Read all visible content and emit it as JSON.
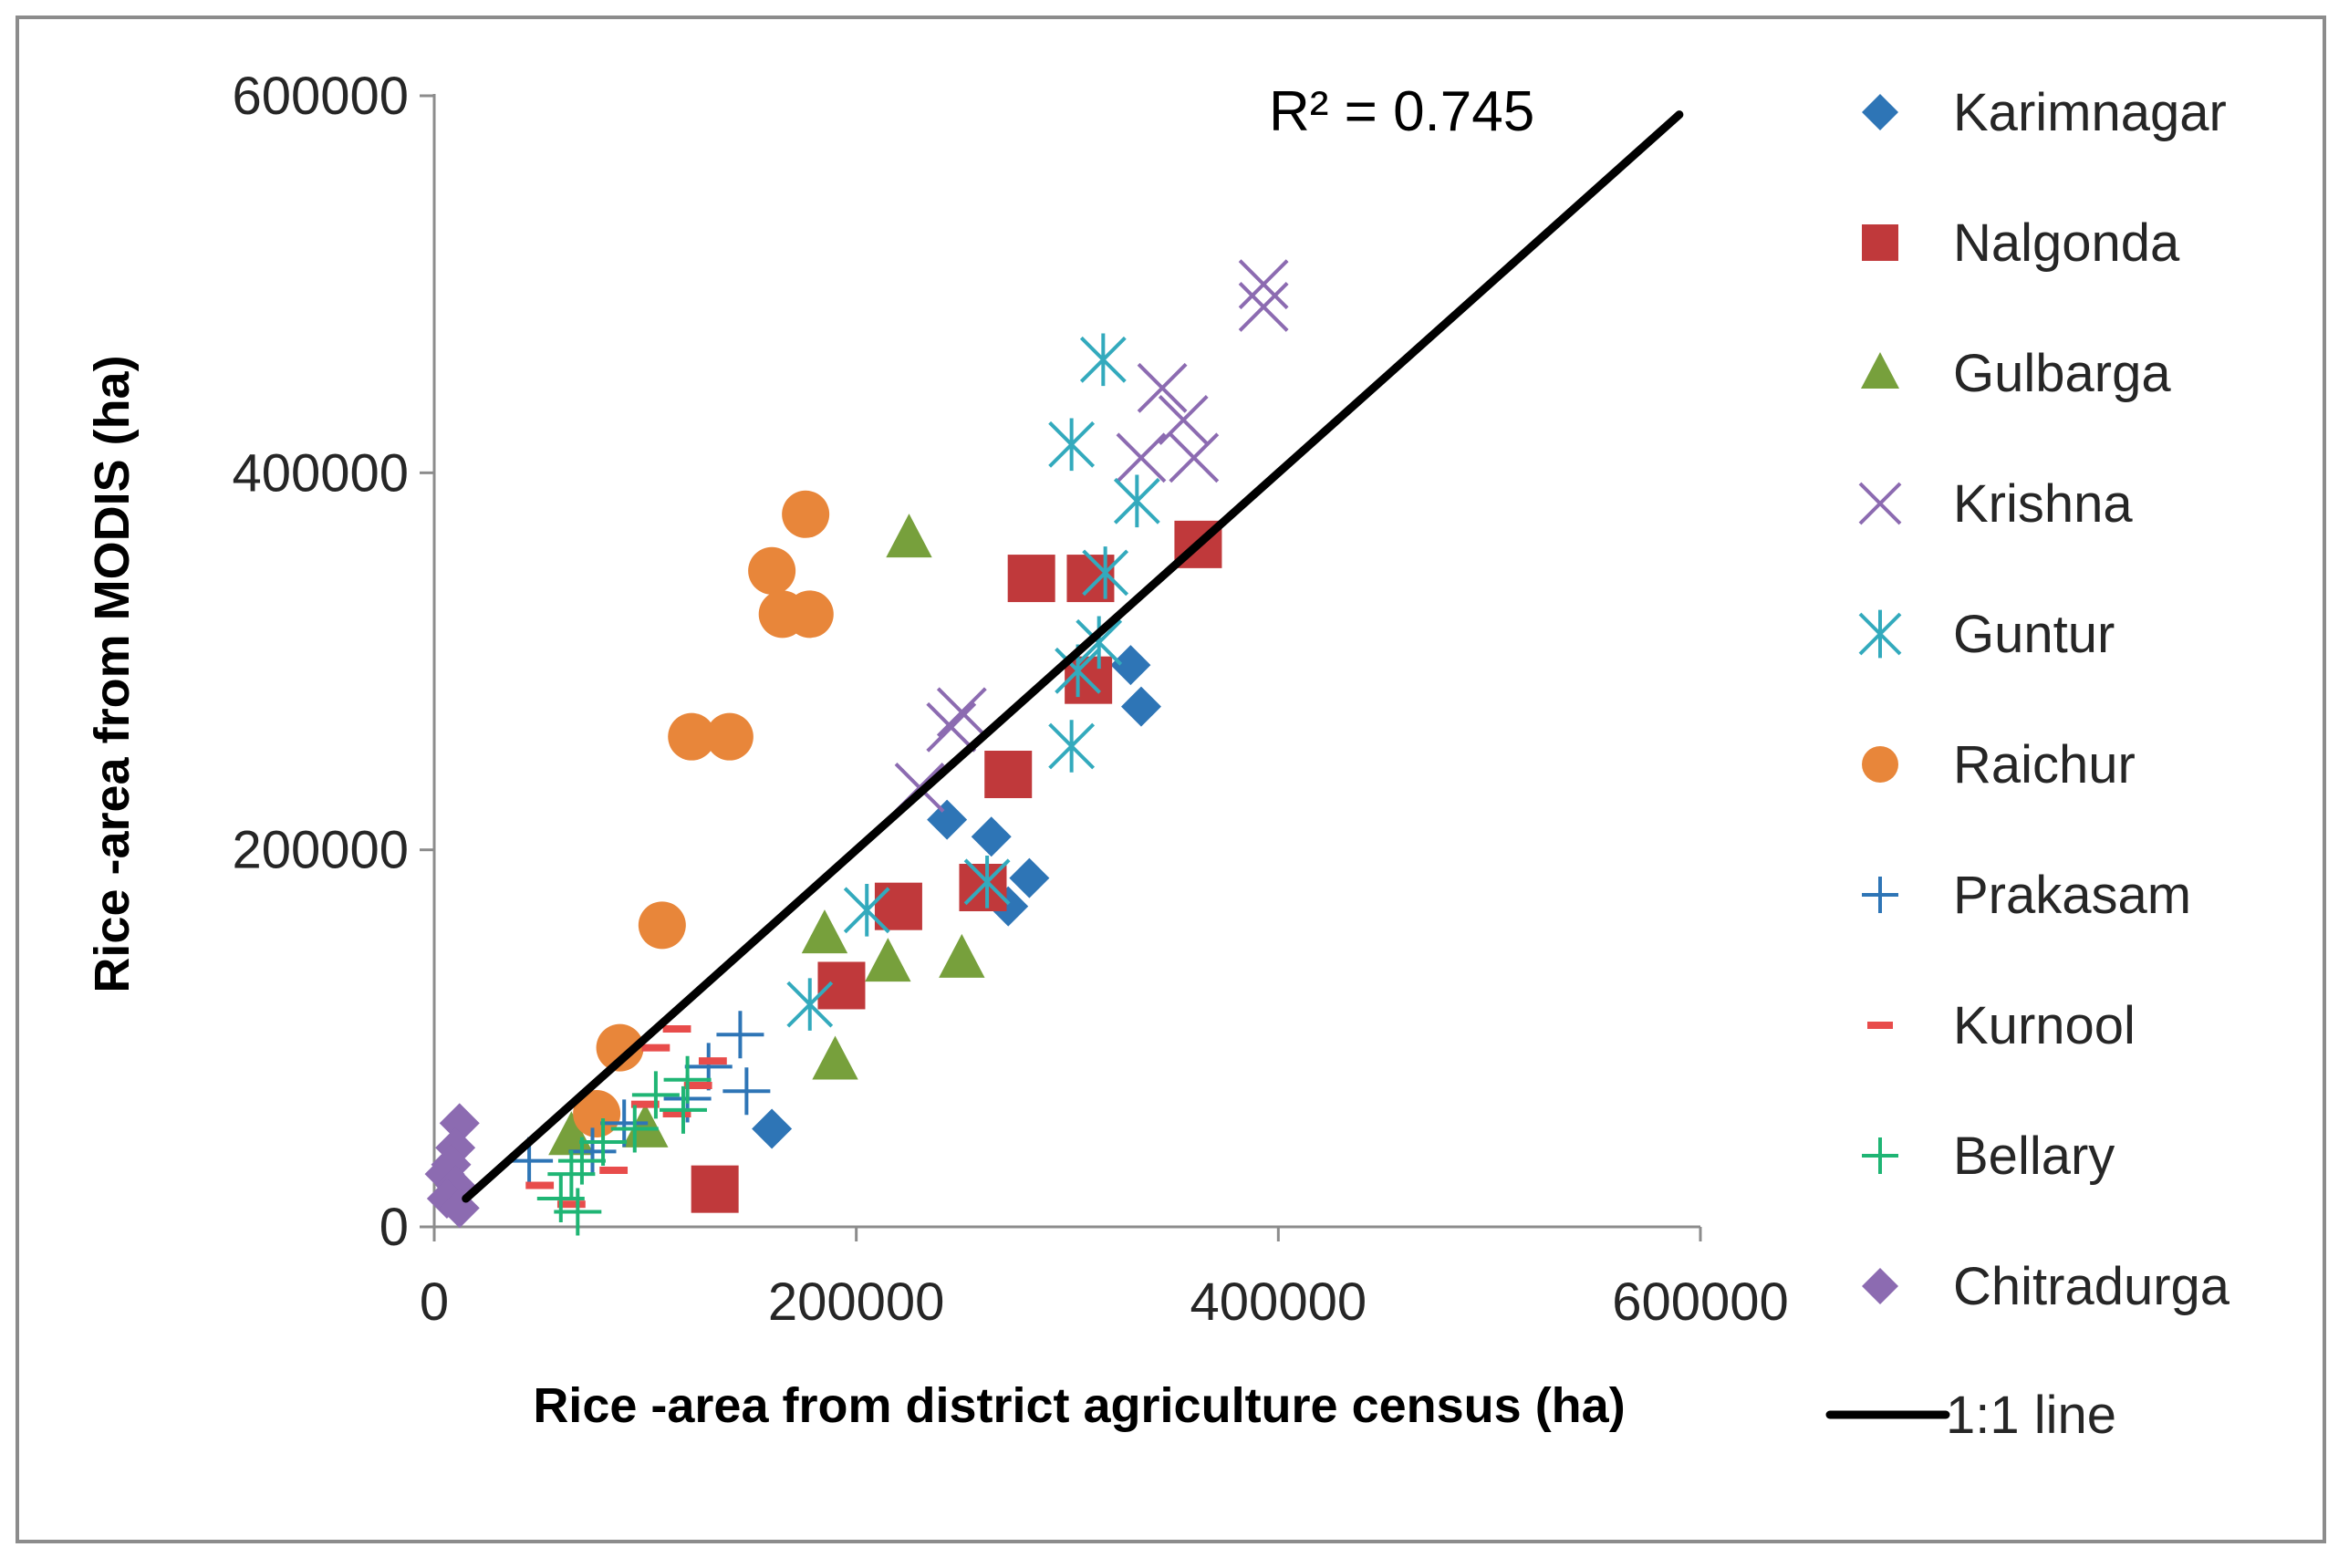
{
  "chart_data": {
    "type": "scatter",
    "title": "",
    "xlabel": "Rice -area from district agriculture census (ha)",
    "ylabel": "Rice -area from MODIS (ha)",
    "xlim": [
      0,
      600000
    ],
    "ylim": [
      0,
      600000
    ],
    "xticks": [
      0,
      200000,
      400000,
      600000
    ],
    "yticks": [
      0,
      200000,
      400000,
      600000
    ],
    "xtick_labels": [
      "0",
      "200000",
      "400000",
      "600000"
    ],
    "ytick_labels": [
      "0",
      "200000",
      "400000",
      "600000"
    ],
    "grid": false,
    "legend_position": "right",
    "annotation": "R² = 0.745",
    "reference_line": {
      "name": "1:1 line",
      "x": [
        15000,
        590000
      ],
      "y": [
        15000,
        590000
      ],
      "color": "#000000"
    },
    "series": [
      {
        "name": "Karimnagar",
        "marker": "diamond",
        "color": "#2E75B6",
        "points": [
          [
            243000,
            216000
          ],
          [
            264000,
            207000
          ],
          [
            282000,
            185000
          ],
          [
            272000,
            170000
          ],
          [
            160000,
            52000
          ],
          [
            330000,
            298000
          ],
          [
            335000,
            276000
          ]
        ]
      },
      {
        "name": "Nalgonda",
        "marker": "square",
        "color": "#C0393B",
        "points": [
          [
            283000,
            344000
          ],
          [
            311000,
            344000
          ],
          [
            362000,
            362000
          ],
          [
            272000,
            240000
          ],
          [
            220000,
            170000
          ],
          [
            260000,
            180000
          ],
          [
            310000,
            290000
          ],
          [
            193000,
            128000
          ],
          [
            133000,
            20000
          ]
        ]
      },
      {
        "name": "Gulbarga",
        "marker": "triangle",
        "color": "#77A03C",
        "points": [
          [
            225000,
            365000
          ],
          [
            185000,
            155000
          ],
          [
            215000,
            140000
          ],
          [
            250000,
            142000
          ],
          [
            190000,
            88000
          ],
          [
            65000,
            48000
          ],
          [
            100000,
            52000
          ]
        ]
      },
      {
        "name": "Krishna",
        "marker": "x",
        "color": "#8C6BB1",
        "points": [
          [
            393000,
            500000
          ],
          [
            393000,
            488000
          ],
          [
            345000,
            445000
          ],
          [
            355000,
            428000
          ],
          [
            335000,
            408000
          ],
          [
            360000,
            408000
          ],
          [
            250000,
            273000
          ],
          [
            245000,
            265000
          ],
          [
            230000,
            233000
          ]
        ]
      },
      {
        "name": "Guntur",
        "marker": "asterisk",
        "color": "#33AABD",
        "points": [
          [
            317000,
            460000
          ],
          [
            302000,
            415000
          ],
          [
            333000,
            385000
          ],
          [
            318000,
            347000
          ],
          [
            315000,
            310000
          ],
          [
            305000,
            295000
          ],
          [
            302000,
            255000
          ],
          [
            262000,
            183000
          ],
          [
            205000,
            168000
          ],
          [
            178000,
            118000
          ]
        ]
      },
      {
        "name": "Raichur",
        "marker": "circle",
        "color": "#E8863A",
        "points": [
          [
            176000,
            378000
          ],
          [
            160000,
            348000
          ],
          [
            165000,
            325000
          ],
          [
            178000,
            325000
          ],
          [
            122000,
            260000
          ],
          [
            140000,
            260000
          ],
          [
            108000,
            160000
          ],
          [
            88000,
            95000
          ],
          [
            77000,
            60000
          ]
        ]
      },
      {
        "name": "Prakasam",
        "marker": "plus",
        "color": "#2E75B6",
        "points": [
          [
            145000,
            102000
          ],
          [
            148000,
            72000
          ],
          [
            120000,
            68000
          ],
          [
            90000,
            55000
          ],
          [
            45000,
            35000
          ],
          [
            75000,
            40000
          ],
          [
            130000,
            85000
          ]
        ]
      },
      {
        "name": "Kurnool",
        "marker": "dash",
        "color": "#E84C4B",
        "points": [
          [
            115000,
            105000
          ],
          [
            132000,
            88000
          ],
          [
            125000,
            75000
          ],
          [
            100000,
            65000
          ],
          [
            115000,
            60000
          ],
          [
            85000,
            30000
          ],
          [
            65000,
            12000
          ],
          [
            50000,
            22000
          ],
          [
            105000,
            95000
          ]
        ]
      },
      {
        "name": "Bellary",
        "marker": "plus",
        "color": "#1FB574",
        "points": [
          [
            120000,
            78000
          ],
          [
            118000,
            62000
          ],
          [
            105000,
            70000
          ],
          [
            95000,
            52000
          ],
          [
            80000,
            45000
          ],
          [
            70000,
            35000
          ],
          [
            60000,
            15000
          ],
          [
            65000,
            28000
          ],
          [
            68000,
            8000
          ]
        ]
      },
      {
        "name": "Chitradurga",
        "marker": "diamond",
        "color": "#8C6BB1",
        "points": [
          [
            12000,
            55000
          ],
          [
            10000,
            42000
          ],
          [
            8000,
            33000
          ],
          [
            5000,
            28000
          ],
          [
            10000,
            22000
          ],
          [
            6000,
            15000
          ],
          [
            12000,
            10000
          ]
        ]
      }
    ]
  }
}
